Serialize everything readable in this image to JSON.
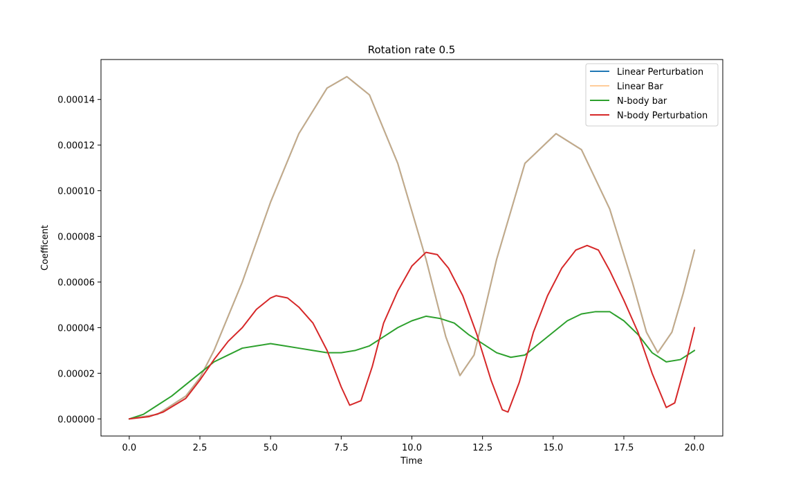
{
  "chart_data": {
    "type": "line",
    "title": "Rotation rate 0.5",
    "xlabel": "Time",
    "ylabel": "Coefficent",
    "xlim": [
      -1.0,
      21.0
    ],
    "ylim": [
      -7.5e-06,
      0.0001575
    ],
    "xticks": [
      0.0,
      2.5,
      5.0,
      7.5,
      10.0,
      12.5,
      15.0,
      17.5,
      20.0
    ],
    "xtick_labels": [
      "0.0",
      "2.5",
      "5.0",
      "7.5",
      "10.0",
      "12.5",
      "15.0",
      "17.5",
      "20.0"
    ],
    "yticks": [
      0.0,
      2e-05,
      4e-05,
      6e-05,
      8e-05,
      0.0001,
      0.00012,
      0.00014
    ],
    "ytick_labels": [
      "0.00000",
      "0.00002",
      "0.00004",
      "0.00006",
      "0.00008",
      "0.00010",
      "0.00012",
      "0.00014"
    ],
    "grid": false,
    "legend_position": "top-right",
    "series": [
      {
        "name": "Linear Perturbation",
        "color": "#1f77b4",
        "x": [
          0.0,
          1.0,
          2.0,
          2.5,
          3.0,
          4.0,
          5.0,
          6.0,
          7.0,
          7.7,
          8.5,
          9.5,
          10.5,
          11.2,
          11.7,
          12.2,
          13.0,
          14.0,
          15.1,
          16.0,
          17.0,
          17.8,
          18.3,
          18.7,
          19.2,
          19.6,
          20.0
        ],
        "y": [
          0.0,
          2e-06,
          1e-05,
          1.8e-05,
          3e-05,
          6e-05,
          9.5e-05,
          0.000125,
          0.000145,
          0.00015,
          0.000142,
          0.000112,
          7e-05,
          3.6e-05,
          1.9e-05,
          2.8e-05,
          7e-05,
          0.000112,
          0.000125,
          0.000118,
          9.2e-05,
          6e-05,
          3.8e-05,
          2.9e-05,
          3.8e-05,
          5.5e-05,
          7.4e-05
        ]
      },
      {
        "name": "Linear Bar",
        "color": "#ffbb78",
        "x": [
          0.0,
          1.0,
          2.0,
          2.5,
          3.0,
          4.0,
          5.0,
          6.0,
          7.0,
          7.7,
          8.5,
          9.5,
          10.5,
          11.2,
          11.7,
          12.2,
          13.0,
          14.0,
          15.1,
          16.0,
          17.0,
          17.8,
          18.3,
          18.7,
          19.2,
          19.6,
          20.0
        ],
        "y": [
          0.0,
          2e-06,
          1e-05,
          1.8e-05,
          3e-05,
          6e-05,
          9.5e-05,
          0.000125,
          0.000145,
          0.00015,
          0.000142,
          0.000112,
          7e-05,
          3.6e-05,
          1.9e-05,
          2.8e-05,
          7e-05,
          0.000112,
          0.000125,
          0.000118,
          9.2e-05,
          6e-05,
          3.8e-05,
          2.9e-05,
          3.8e-05,
          5.5e-05,
          7.4e-05
        ]
      },
      {
        "name": "N-body bar",
        "color": "#2ca02c",
        "x": [
          0.0,
          0.5,
          1.0,
          1.5,
          2.0,
          2.5,
          3.0,
          3.5,
          4.0,
          4.5,
          5.0,
          5.5,
          6.0,
          6.5,
          7.0,
          7.5,
          8.0,
          8.5,
          9.0,
          9.5,
          10.0,
          10.5,
          11.0,
          11.5,
          12.0,
          12.5,
          13.0,
          13.5,
          14.0,
          14.5,
          15.0,
          15.5,
          16.0,
          16.5,
          17.0,
          17.5,
          18.0,
          18.5,
          19.0,
          19.5,
          20.0
        ],
        "y": [
          0.0,
          2e-06,
          6e-06,
          1e-05,
          1.5e-05,
          2e-05,
          2.5e-05,
          2.8e-05,
          3.1e-05,
          3.2e-05,
          3.3e-05,
          3.2e-05,
          3.1e-05,
          3e-05,
          2.9e-05,
          2.9e-05,
          3e-05,
          3.2e-05,
          3.6e-05,
          4e-05,
          4.3e-05,
          4.5e-05,
          4.4e-05,
          4.2e-05,
          3.7e-05,
          3.3e-05,
          2.9e-05,
          2.7e-05,
          2.8e-05,
          3.3e-05,
          3.8e-05,
          4.3e-05,
          4.6e-05,
          4.7e-05,
          4.7e-05,
          4.3e-05,
          3.7e-05,
          2.9e-05,
          2.5e-05,
          2.6e-05,
          3e-05
        ]
      },
      {
        "name": "N-body Perturbation",
        "color": "#d62728",
        "x": [
          0.0,
          0.7,
          1.2,
          2.0,
          2.5,
          3.0,
          3.5,
          4.0,
          4.5,
          5.0,
          5.2,
          5.6,
          6.0,
          6.5,
          7.0,
          7.5,
          7.8,
          8.2,
          8.6,
          9.0,
          9.5,
          10.0,
          10.5,
          10.9,
          11.3,
          11.8,
          12.3,
          12.8,
          13.2,
          13.4,
          13.8,
          14.3,
          14.8,
          15.3,
          15.8,
          16.2,
          16.6,
          17.0,
          17.5,
          18.0,
          18.5,
          19.0,
          19.3,
          19.7,
          20.0
        ],
        "y": [
          0.0,
          1e-06,
          3e-06,
          9e-06,
          1.7e-05,
          2.6e-05,
          3.4e-05,
          4e-05,
          4.8e-05,
          5.3e-05,
          5.4e-05,
          5.3e-05,
          4.9e-05,
          4.2e-05,
          3e-05,
          1.4e-05,
          6e-06,
          8e-06,
          2.3e-05,
          4.2e-05,
          5.6e-05,
          6.7e-05,
          7.3e-05,
          7.2e-05,
          6.6e-05,
          5.4e-05,
          3.7e-05,
          1.7e-05,
          4e-06,
          3e-06,
          1.6e-05,
          3.8e-05,
          5.4e-05,
          6.6e-05,
          7.4e-05,
          7.6e-05,
          7.4e-05,
          6.5e-05,
          5.2e-05,
          3.8e-05,
          2e-05,
          5e-06,
          7e-06,
          2.5e-05,
          4e-05
        ]
      }
    ]
  }
}
